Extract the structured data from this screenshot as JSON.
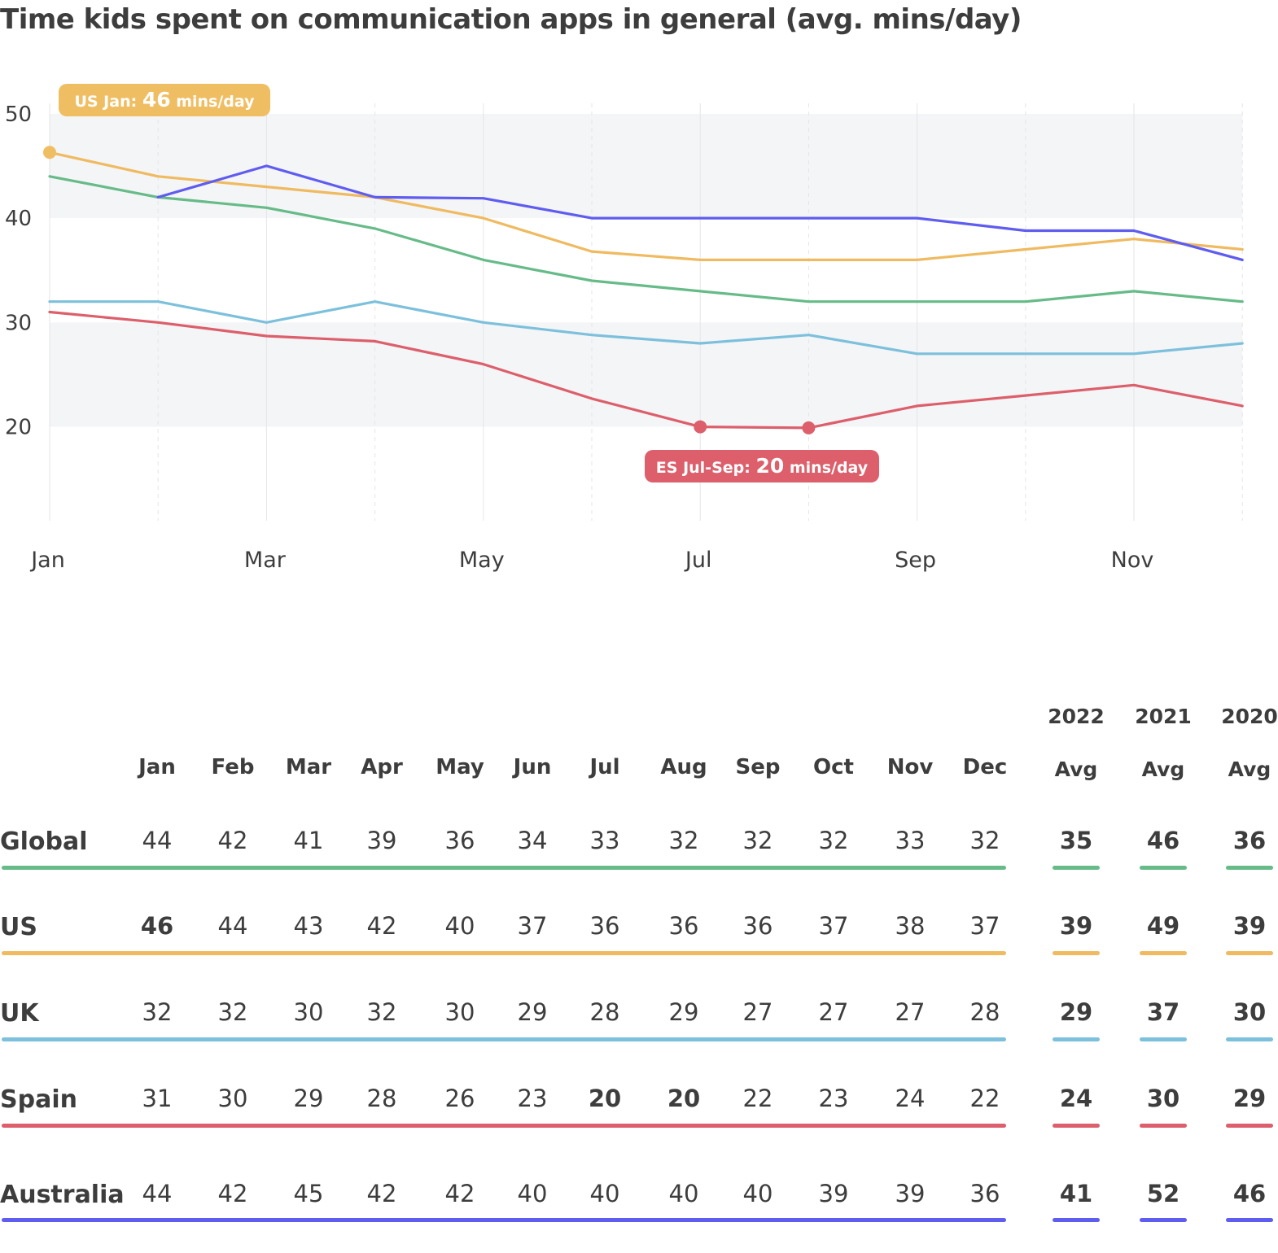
{
  "title": "Time kids spent on communication apps in general (avg. mins/day)",
  "chart_data": {
    "type": "line",
    "x": [
      "Jan",
      "Feb",
      "Mar",
      "Apr",
      "May",
      "Jun",
      "Jul",
      "Aug",
      "Sep",
      "Oct",
      "Nov",
      "Dec"
    ],
    "xtick_labels": [
      "Jan",
      "Mar",
      "May",
      "Jul",
      "Sep",
      "Nov"
    ],
    "ytick_labels": [
      "50",
      "40",
      "30",
      "20"
    ],
    "ylim": [
      11,
      51
    ],
    "series": [
      {
        "name": "Global",
        "color": "#66bb88",
        "values": [
          44,
          42,
          41,
          39,
          36,
          34,
          33,
          32,
          32,
          32,
          33,
          32
        ]
      },
      {
        "name": "US",
        "color": "#efba60",
        "values": [
          46.3,
          44,
          43,
          42,
          40,
          36.8,
          36,
          36,
          36,
          37,
          38,
          37
        ]
      },
      {
        "name": "UK",
        "color": "#7cc0dc",
        "values": [
          32,
          32,
          30,
          32,
          30,
          28.8,
          28,
          28.8,
          27,
          27,
          27,
          28
        ]
      },
      {
        "name": "Spain",
        "color": "#dc5f6b",
        "values": [
          31,
          30,
          28.7,
          28.2,
          26,
          22.7,
          20,
          19.9,
          22,
          23,
          24,
          22
        ]
      },
      {
        "name": "Australia",
        "color": "#5f5cf0",
        "values": [
          null,
          42,
          45,
          42,
          41.9,
          40,
          40,
          40,
          40,
          38.8,
          38.8,
          36
        ]
      }
    ],
    "annotations": [
      {
        "prefix": "US Jan: ",
        "value": "46",
        "suffix": " mins/day",
        "color": "#f0be62",
        "points": [
          [
            0,
            46.3
          ]
        ]
      },
      {
        "prefix": "ES Jul-Sep: ",
        "value": "20",
        "suffix": " mins/day",
        "color": "#dc5f6b",
        "points": [
          [
            6,
            20
          ],
          [
            7,
            19.9
          ]
        ]
      }
    ]
  },
  "table": {
    "months": [
      "Jan",
      "Feb",
      "Mar",
      "Apr",
      "May",
      "Jun",
      "Jul",
      "Aug",
      "Sep",
      "Oct",
      "Nov",
      "Dec"
    ],
    "year_headers": [
      {
        "year": "2022",
        "label": "Avg"
      },
      {
        "year": "2021",
        "label": "Avg"
      },
      {
        "year": "2020",
        "label": "Avg"
      }
    ],
    "rows": [
      {
        "name": "Global",
        "color": "#66bb88",
        "values": [
          "44",
          "42",
          "41",
          "39",
          "36",
          "34",
          "33",
          "32",
          "32",
          "32",
          "33",
          "32"
        ],
        "bold_months": [],
        "avgs": [
          "35",
          "46",
          "36"
        ]
      },
      {
        "name": "US",
        "color": "#efba60",
        "values": [
          "46",
          "44",
          "43",
          "42",
          "40",
          "37",
          "36",
          "36",
          "36",
          "37",
          "38",
          "37"
        ],
        "bold_months": [
          0
        ],
        "avgs": [
          "39",
          "49",
          "39"
        ]
      },
      {
        "name": "UK",
        "color": "#7cc0dc",
        "values": [
          "32",
          "32",
          "30",
          "32",
          "30",
          "29",
          "28",
          "29",
          "27",
          "27",
          "27",
          "28"
        ],
        "bold_months": [],
        "avgs": [
          "29",
          "37",
          "30"
        ]
      },
      {
        "name": "Spain",
        "color": "#dc5f6b",
        "values": [
          "31",
          "30",
          "29",
          "28",
          "26",
          "23",
          "20",
          "20",
          "22",
          "23",
          "24",
          "22"
        ],
        "bold_months": [
          6,
          7
        ],
        "avgs": [
          "24",
          "30",
          "29"
        ]
      },
      {
        "name": "Australia",
        "color": "#5f5cf0",
        "values": [
          "44",
          "42",
          "45",
          "42",
          "42",
          "40",
          "40",
          "40",
          "40",
          "39",
          "39",
          "36"
        ],
        "bold_months": [],
        "avgs": [
          "41",
          "52",
          "46"
        ]
      }
    ]
  }
}
